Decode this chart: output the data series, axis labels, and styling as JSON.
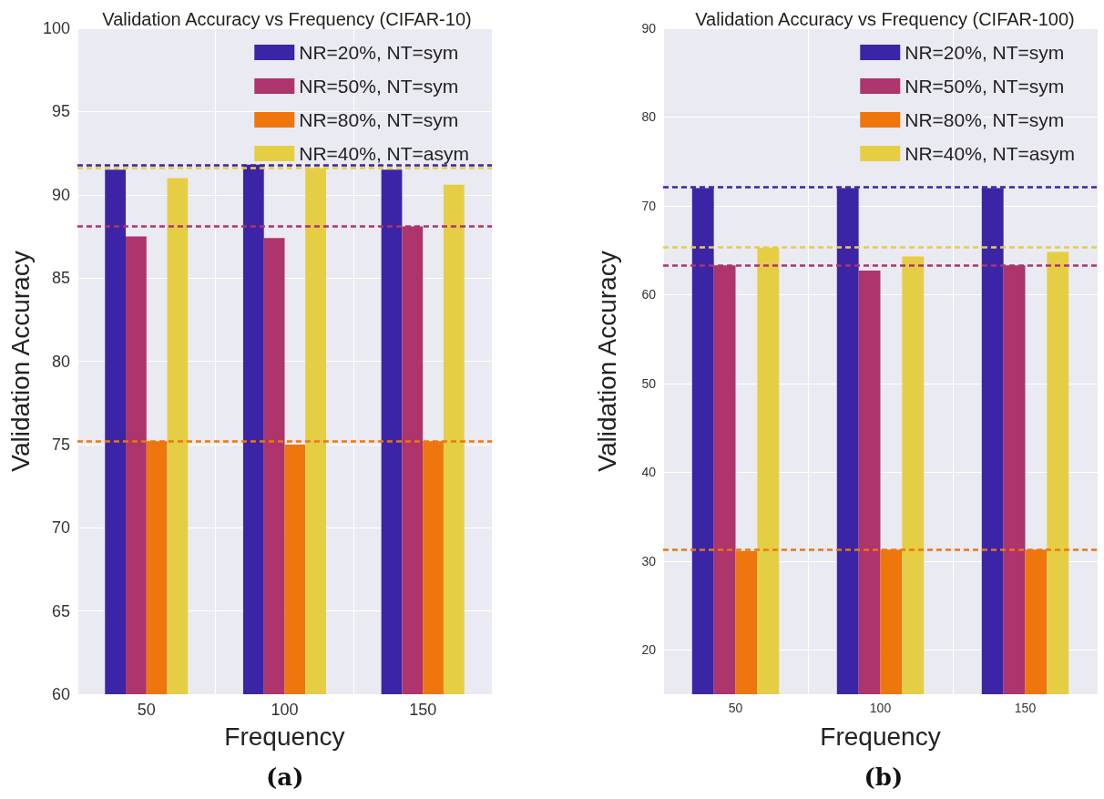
{
  "chart_data": [
    {
      "type": "bar",
      "title": "Validation Accuracy vs Frequency (CIFAR-10)",
      "xlabel": "Frequency",
      "ylabel": "Validation Accuracy",
      "categories": [
        "50",
        "100",
        "150"
      ],
      "series": [
        {
          "name": "NR=20%, NT=sym",
          "color": "#3b24a5",
          "values": [
            91.5,
            91.8,
            91.5
          ]
        },
        {
          "name": "NR=50%, NT=sym",
          "color": "#ad346d",
          "values": [
            87.5,
            87.4,
            88.1
          ]
        },
        {
          "name": "NR=80%, NT=sym",
          "color": "#ee760c",
          "values": [
            75.2,
            75.0,
            75.2
          ]
        },
        {
          "name": "NR=40%, NT=asym",
          "color": "#e5ce44",
          "values": [
            91.0,
            91.6,
            90.6
          ]
        }
      ],
      "ylim": [
        60,
        100
      ],
      "yticks": [
        60,
        65,
        70,
        75,
        80,
        85,
        90,
        95,
        100
      ],
      "ref_lines": [
        {
          "axis": "y",
          "value": 91.8,
          "color": "#3b24a5",
          "line_style": "dashed"
        },
        {
          "axis": "y",
          "value": 88.1,
          "color": "#ad346d",
          "line_style": "dashed"
        },
        {
          "axis": "y",
          "value": 75.2,
          "color": "#ee760c",
          "line_style": "dashed"
        },
        {
          "axis": "y",
          "value": 91.6,
          "color": "#e5ce44",
          "line_style": "dashed"
        }
      ],
      "annotations": [
        "(a)"
      ],
      "grid": true,
      "legend": "top right"
    },
    {
      "type": "bar",
      "title": "Validation Accuracy vs Frequency (CIFAR-100)",
      "xlabel": "Frequency",
      "ylabel": "Validation Accuracy",
      "categories": [
        "50",
        "100",
        "150"
      ],
      "series": [
        {
          "name": "NR=20%, NT=sym",
          "color": "#3b24a5",
          "values": [
            72.0,
            72.0,
            72.0
          ]
        },
        {
          "name": "NR=50%, NT=sym",
          "color": "#ad346d",
          "values": [
            63.3,
            62.7,
            63.3
          ]
        },
        {
          "name": "NR=80%, NT=sym",
          "color": "#ee760c",
          "values": [
            31.1,
            31.3,
            31.3
          ]
        },
        {
          "name": "NR=40%, NT=asym",
          "color": "#e5ce44",
          "values": [
            65.3,
            64.3,
            64.8
          ]
        }
      ],
      "ylim": [
        15,
        90
      ],
      "yticks": [
        20,
        30,
        40,
        50,
        60,
        70,
        80,
        90
      ],
      "ref_lines": [
        {
          "axis": "y",
          "value": 72.1,
          "color": "#3b24a5",
          "line_style": "dashed"
        },
        {
          "axis": "y",
          "value": 63.3,
          "color": "#ad346d",
          "line_style": "dashed"
        },
        {
          "axis": "y",
          "value": 31.3,
          "color": "#ee760c",
          "line_style": "dashed"
        },
        {
          "axis": "y",
          "value": 65.4,
          "color": "#e5ce44",
          "line_style": "dashed"
        }
      ],
      "annotations": [
        "(b)"
      ],
      "grid": true,
      "legend": "top right"
    }
  ]
}
